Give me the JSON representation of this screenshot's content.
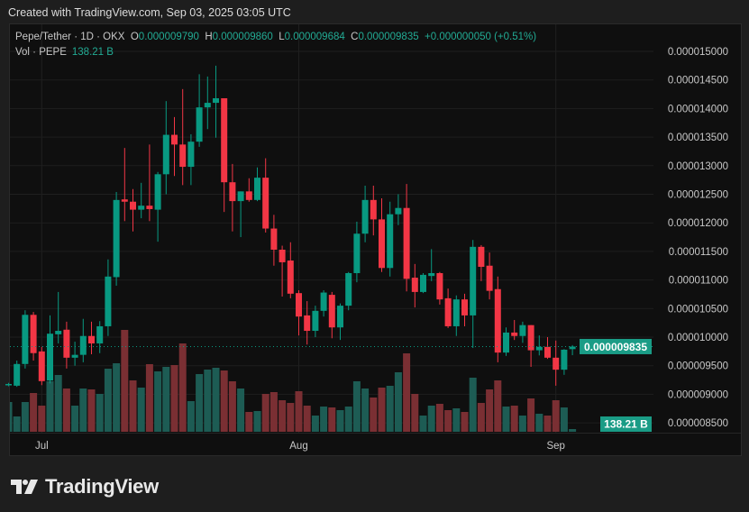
{
  "header": {
    "created_with": "Created with TradingView.com, Sep 03, 2025 03:05 UTC"
  },
  "legend": {
    "symbol": "Pepe/Tether · 1D · OKX",
    "open_label": "O",
    "open": "0.000009790",
    "high_label": "H",
    "high": "0.000009860",
    "low_label": "L",
    "low": "0.000009684",
    "close_label": "C",
    "close": "0.000009835",
    "change": "+0.000000050 (+0.51%)",
    "volume_label": "Vol · PEPE",
    "volume": "138.21 B"
  },
  "colors": {
    "up": "#089981",
    "down": "#f23645",
    "up_volume": "#1d5c54",
    "down_volume": "#7a2f33",
    "background": "#0f0f0f",
    "grid": "#1f1f1f"
  },
  "brand": {
    "logo_text": "TradingView"
  },
  "chart_data": {
    "type": "candlestick",
    "title": "Pepe/Tether · 1D · OKX",
    "x_tick_labels": [
      "Jul",
      "Aug",
      "Sep"
    ],
    "y_tick_labels": [
      "0.000015000",
      "0.000014500",
      "0.000014000",
      "0.000013500",
      "0.000013000",
      "0.000012500",
      "0.000012000",
      "0.000011500",
      "0.000011000",
      "0.000010500",
      "0.000010000",
      "0.000009500",
      "0.000009000",
      "0.000008500"
    ],
    "ylim": [
      8.5e-06,
      1.5e-05
    ],
    "grid": true,
    "last_price_label": "0.000009835",
    "last_volume_label": "138.21 B",
    "date_range": [
      "Jun 27",
      "Sep 03"
    ],
    "ohlc": [
      [
        9.17e-06,
        9.2e-06,
        9.14e-06,
        9.18e-06
      ],
      [
        9.15e-06,
        9.59e-06,
        9.13e-06,
        9.53e-06
      ],
      [
        9.53e-06,
        1.047e-05,
        9.45e-06,
        1.039e-05
      ],
      [
        1.039e-05,
        1.044e-05,
        9.59e-06,
        9.72e-06
      ],
      [
        9.75e-06,
        9.83e-06,
        9.16e-06,
        9.23e-06
      ],
      [
        9.24e-06,
        1.038e-05,
        9.19e-06,
        1.006e-05
      ],
      [
        1.005e-05,
        1.079e-05,
        9.89e-06,
        1.011e-05
      ],
      [
        1.013e-05,
        1.027e-05,
        9.45e-06,
        9.64e-06
      ],
      [
        9.64e-06,
        9.92e-06,
        9.5e-06,
        9.69e-06
      ],
      [
        9.69e-06,
        1.032e-05,
        9.56e-06,
        1.002e-05
      ],
      [
        1.002e-05,
        1.027e-05,
        9.7e-06,
        9.89e-06
      ],
      [
        9.89e-06,
        1.028e-05,
        9.72e-06,
        1.019e-05
      ],
      [
        1.019e-05,
        1.136e-05,
        1.002e-05,
        1.106e-05
      ],
      [
        1.105e-05,
        1.254e-05,
        1.09e-05,
        1.24e-05
      ],
      [
        1.241e-05,
        1.331e-05,
        1.203e-05,
        1.237e-05
      ],
      [
        1.237e-05,
        1.259e-05,
        1.185e-05,
        1.223e-05
      ],
      [
        1.223e-05,
        1.27e-05,
        1.208e-05,
        1.23e-05
      ],
      [
        1.23e-05,
        1.337e-05,
        1.203e-05,
        1.224e-05
      ],
      [
        1.223e-05,
        1.289e-05,
        1.167e-05,
        1.285e-05
      ],
      [
        1.285e-05,
        1.413e-05,
        1.25e-05,
        1.354e-05
      ],
      [
        1.354e-05,
        1.385e-05,
        1.282e-05,
        1.337e-05
      ],
      [
        1.337e-05,
        1.434e-05,
        1.266e-05,
        1.298e-05
      ],
      [
        1.298e-05,
        1.355e-05,
        1.266e-05,
        1.342e-05
      ],
      [
        1.342e-05,
        1.46e-05,
        1.333e-05,
        1.402e-05
      ],
      [
        1.402e-05,
        1.456e-05,
        1.364e-05,
        1.41e-05
      ],
      [
        1.41e-05,
        1.475e-05,
        1.349e-05,
        1.418e-05
      ],
      [
        1.418e-05,
        1.418e-05,
        1.219e-05,
        1.271e-05
      ],
      [
        1.271e-05,
        1.303e-05,
        1.185e-05,
        1.238e-05
      ],
      [
        1.238e-05,
        1.255e-05,
        1.175e-05,
        1.255e-05
      ],
      [
        1.255e-05,
        1.278e-05,
        1.237e-05,
        1.24e-05
      ],
      [
        1.24e-05,
        1.297e-05,
        1.238e-05,
        1.279e-05
      ],
      [
        1.279e-05,
        1.313e-05,
        1.183e-05,
        1.19e-05
      ],
      [
        1.19e-05,
        1.214e-05,
        1.125e-05,
        1.153e-05
      ],
      [
        1.153e-05,
        1.16e-05,
        1.071e-05,
        1.131e-05
      ],
      [
        1.134e-05,
        1.166e-05,
        1.068e-05,
        1.076e-05
      ],
      [
        1.077e-05,
        1.082e-05,
        1.003e-05,
        1.036e-05
      ],
      [
        1.038e-05,
        1.063e-05,
        9.87e-06,
        1.011e-05
      ],
      [
        1.011e-05,
        1.055e-05,
        1e-05,
        1.046e-05
      ],
      [
        1.046e-05,
        1.082e-05,
        1.036e-05,
        1.078e-05
      ],
      [
        1.074e-05,
        1.079e-05,
        9.98e-06,
        1.017e-05
      ],
      [
        1.017e-05,
        1.059e-05,
        9.95e-06,
        1.055e-05
      ],
      [
        1.055e-05,
        1.114e-05,
        1.047e-05,
        1.112e-05
      ],
      [
        1.112e-05,
        1.202e-05,
        1.096e-05,
        1.181e-05
      ],
      [
        1.181e-05,
        1.265e-05,
        1.166e-05,
        1.24e-05
      ],
      [
        1.24e-05,
        1.265e-05,
        1.178e-05,
        1.206e-05
      ],
      [
        1.206e-05,
        1.243e-05,
        1.114e-05,
        1.121e-05
      ],
      [
        1.121e-05,
        1.237e-05,
        1.106e-05,
        1.215e-05
      ],
      [
        1.215e-05,
        1.25e-05,
        1.196e-05,
        1.226e-05
      ],
      [
        1.226e-05,
        1.268e-05,
        1.08e-05,
        1.102e-05
      ],
      [
        1.104e-05,
        1.128e-05,
        1.052e-05,
        1.079e-05
      ],
      [
        1.079e-05,
        1.112e-05,
        1.077e-05,
        1.109e-05
      ],
      [
        1.107e-05,
        1.154e-05,
        1.098e-05,
        1.112e-05
      ],
      [
        1.112e-05,
        1.114e-05,
        1.057e-05,
        1.066e-05
      ],
      [
        1.068e-05,
        1.085e-05,
        1.016e-05,
        1.019e-05
      ],
      [
        1.019e-05,
        1.073e-05,
        1.002e-05,
        1.066e-05
      ],
      [
        1.066e-05,
        1.076e-05,
        1.019e-05,
        1.038e-05
      ],
      [
        1.038e-05,
        1.17e-05,
        9.81e-06,
        1.158e-05
      ],
      [
        1.158e-05,
        1.161e-05,
        1.098e-05,
        1.123e-05
      ],
      [
        1.125e-05,
        1.148e-05,
        1.066e-05,
        1.081e-05
      ],
      [
        1.084e-05,
        1.106e-05,
        9.56e-06,
        9.73e-06
      ],
      [
        9.73e-06,
        1.017e-05,
        9.67e-06,
        1.008e-05
      ],
      [
        1.008e-05,
        1.03e-05,
        9.95e-06,
        1.002e-05
      ],
      [
        1.002e-05,
        1.027e-05,
        9.9e-06,
        1.021e-05
      ],
      [
        1.021e-05,
        1.021e-05,
        9.48e-06,
        9.77e-06
      ],
      [
        9.77e-06,
        1.003e-05,
        9.68e-06,
        9.83e-06
      ],
      [
        9.83e-06,
        1e-05,
        9.62e-06,
        9.64e-06
      ],
      [
        9.64e-06,
        9.94e-06,
        9.15e-06,
        9.43e-06
      ],
      [
        9.43e-06,
        9.79e-06,
        9.34e-06,
        9.78e-06
      ],
      [
        9.79e-06,
        9.86e-06,
        9.684e-06,
        9.835e-06
      ]
    ],
    "volume_unit": "B",
    "volume": [
      1518,
      782,
      1518,
      1978,
      1334,
      2576,
      2898,
      2208,
      1334,
      2208,
      2162,
      1932,
      3220,
      3496,
      5198,
      2622,
      2254,
      3450,
      3082,
      3312,
      3404,
      4508,
      1564,
      2944,
      3174,
      3266,
      3128,
      2576,
      2208,
      1012,
      1058,
      1932,
      2024,
      1610,
      1472,
      2070,
      1334,
      828,
      1288,
      1242,
      1104,
      1288,
      2576,
      2208,
      1748,
      2254,
      2346,
      3036,
      4002,
      1932,
      828,
      1334,
      1426,
      1104,
      1196,
      1012,
      2760,
      1472,
      2162,
      2622,
      1288,
      1334,
      828,
      1702,
      920,
      828,
      1610,
      1242,
      138.21
    ]
  }
}
